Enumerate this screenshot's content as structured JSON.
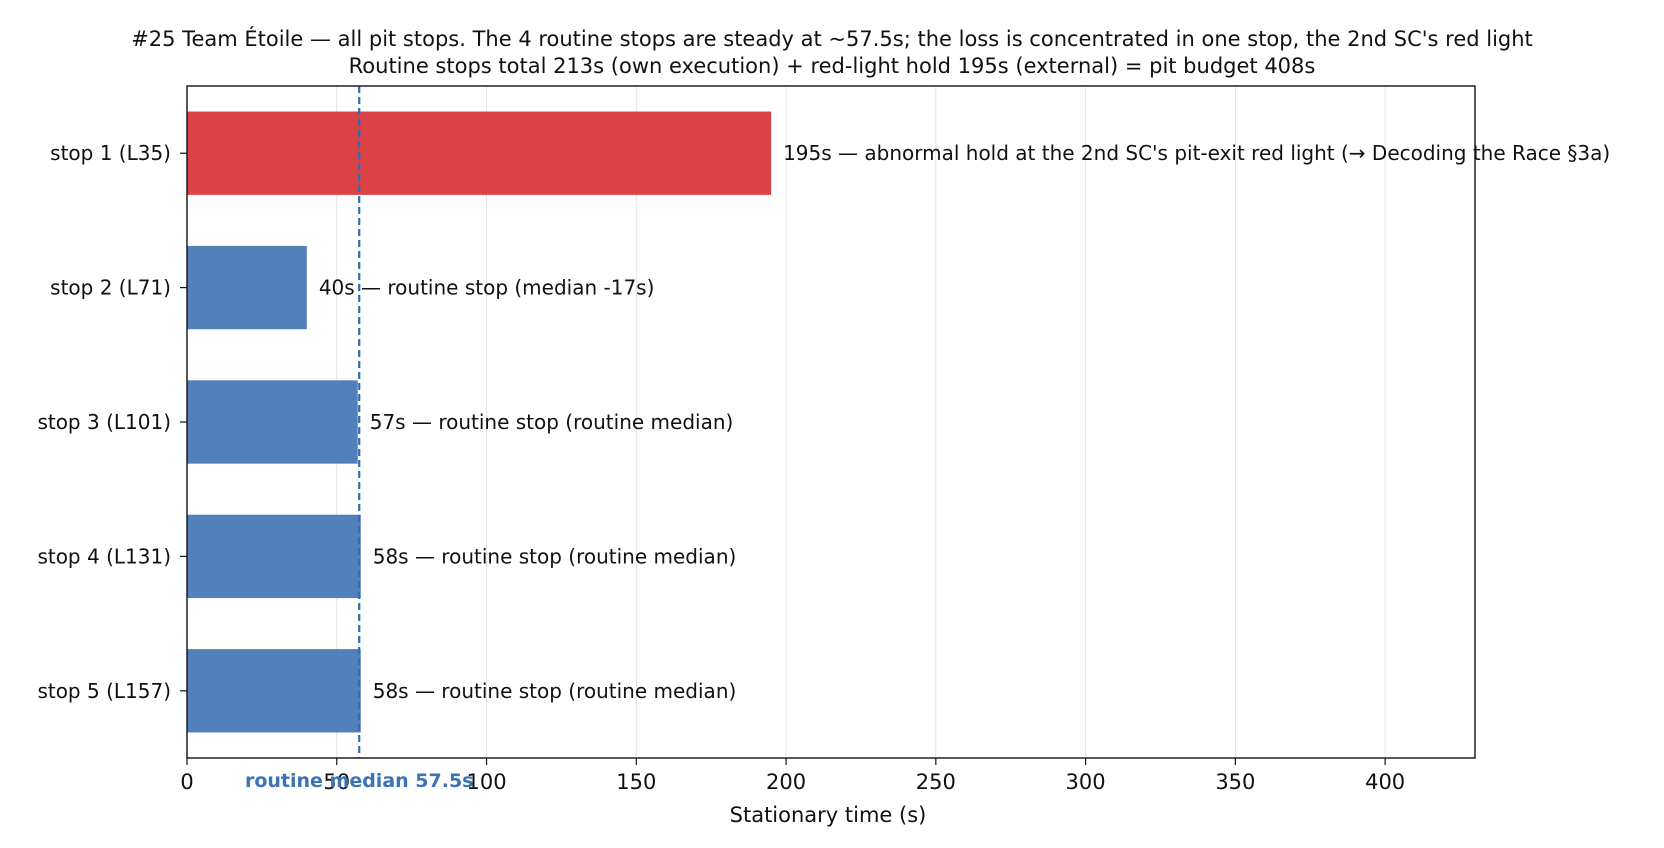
{
  "chart_data": {
    "type": "bar",
    "orientation": "horizontal",
    "title": "#25 Team Étoile — all pit stops. The 4 routine stops are steady at ~57.5s; the loss is concentrated in one stop, the 2nd SC's red light",
    "subtitle": "Routine stops total 213s (own execution) + red-light hold 195s (external) = pit budget 408s",
    "xlabel": "Stationary time (s)",
    "ylabel": "",
    "xlim": [
      0,
      430
    ],
    "xticks": [
      0,
      50,
      100,
      150,
      200,
      250,
      300,
      350,
      400
    ],
    "grid": "x",
    "categories": [
      "stop 1 (L35)",
      "stop 2 (L71)",
      "stop 3 (L101)",
      "stop 4 (L131)",
      "stop 5 (L157)"
    ],
    "values": [
      195,
      40,
      57,
      58,
      58
    ],
    "annotations": [
      "195s — abnormal hold at the 2nd SC's pit-exit red light (→ Decoding the Race §3a)",
      "40s — routine stop (median -17s)",
      "57s — routine stop (routine median)",
      "58s — routine stop (routine median)",
      "58s — routine stop (routine median)"
    ],
    "highlight_index": 0,
    "colors": {
      "highlight": "#dc4145",
      "routine": "#5280ba",
      "median_line": "#2f6cb5",
      "median_label": "#3b73b5",
      "grid": "#e3e3e3",
      "axis": "#111111"
    },
    "median_line": {
      "value": 57.5,
      "label": "routine median 57.5s"
    }
  }
}
